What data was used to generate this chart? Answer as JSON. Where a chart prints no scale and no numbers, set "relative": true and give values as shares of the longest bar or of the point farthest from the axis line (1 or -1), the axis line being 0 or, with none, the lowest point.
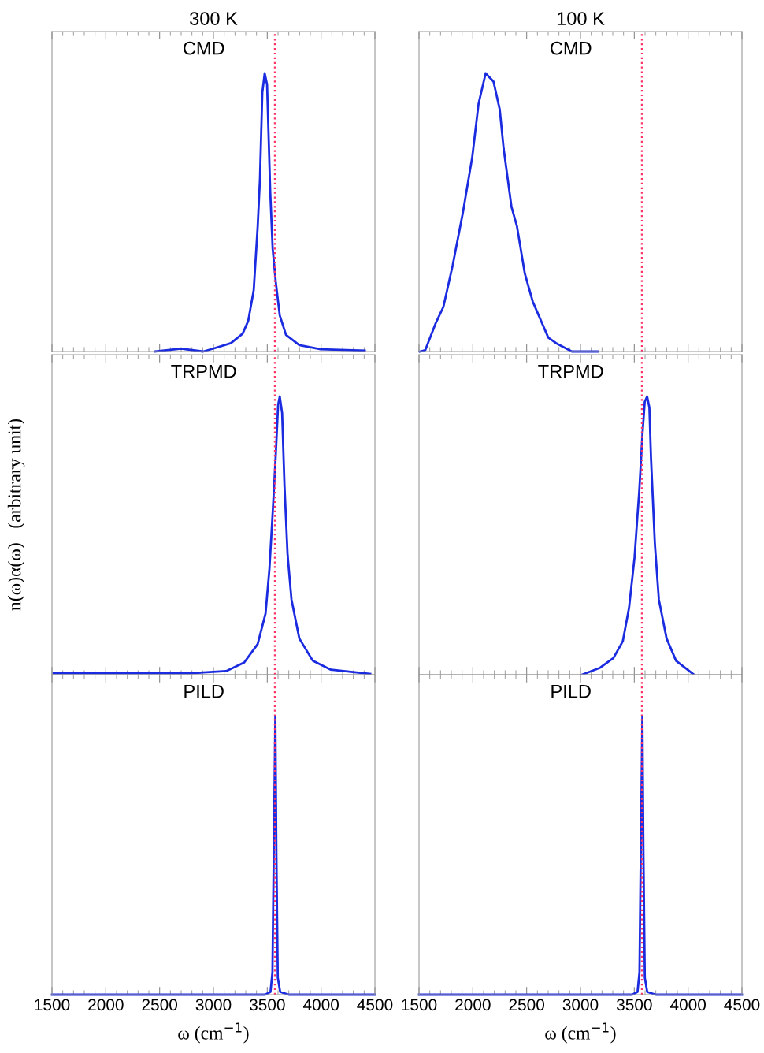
{
  "chart_data": [
    {
      "type": "line",
      "title": "300 K",
      "annotations": [
        "CMD"
      ],
      "relative": true,
      "xlim": [
        1500,
        4500
      ],
      "xticks": [
        1500,
        2000,
        2500,
        3000,
        3500,
        4000,
        4500
      ],
      "tick_labels": false,
      "ref_lines": [
        {
          "axis": "x",
          "value": 3570,
          "color": "#ff3366",
          "line_style": "dotted"
        }
      ],
      "series": [
        {
          "color": "#1a2be0",
          "x": [
            2459,
            2700,
            2905,
            2993,
            3162,
            3271,
            3323,
            3374,
            3411,
            3432,
            3454,
            3476,
            3498,
            3528,
            3550,
            3579,
            3616,
            3674,
            3798,
            3996,
            4406
          ],
          "values": [
            0,
            0.01,
            0,
            0.01,
            0.03,
            0.064,
            0.11,
            0.22,
            0.45,
            0.62,
            0.93,
            1.0,
            0.96,
            0.57,
            0.37,
            0.25,
            0.13,
            0.06,
            0.023,
            0.008,
            0.003
          ]
        }
      ]
    },
    {
      "type": "line",
      "title": "100 K",
      "annotations": [
        "CMD"
      ],
      "relative": true,
      "xlim": [
        1500,
        4500
      ],
      "xticks": [
        1500,
        2000,
        2500,
        3000,
        3500,
        4000,
        4500
      ],
      "tick_labels": false,
      "ref_lines": [
        {
          "axis": "x",
          "value": 3570,
          "color": "#ff3366",
          "line_style": "dotted"
        }
      ],
      "series": [
        {
          "color": "#1a2be0",
          "x": [
            1507,
            1558,
            1653,
            1726,
            1813,
            1908,
            1995,
            2053,
            2119,
            2192,
            2250,
            2286,
            2359,
            2410,
            2483,
            2556,
            2701,
            2774,
            2920,
            3160
          ],
          "values": [
            0,
            0.005,
            0.1,
            0.16,
            0.31,
            0.5,
            0.7,
            0.89,
            1.0,
            0.97,
            0.87,
            0.73,
            0.52,
            0.45,
            0.28,
            0.18,
            0.05,
            0.03,
            0,
            0
          ]
        }
      ]
    },
    {
      "type": "line",
      "annotations": [
        "TRPMD"
      ],
      "ylabel": "n(ω)α(ω)   (arbitrary unit)",
      "relative": true,
      "xlim": [
        1500,
        4500
      ],
      "xticks": [
        1500,
        2000,
        2500,
        3000,
        3500,
        4000,
        4500
      ],
      "tick_labels": false,
      "ref_lines": [
        {
          "axis": "x",
          "value": 3570,
          "color": "#ff3366",
          "line_style": "dotted"
        }
      ],
      "series": [
        {
          "color": "#1a2be0",
          "x": [
            1515,
            2115,
            2774,
            3118,
            3286,
            3411,
            3484,
            3520,
            3550,
            3579,
            3601,
            3616,
            3638,
            3660,
            3689,
            3725,
            3798,
            3923,
            4091,
            4457
          ],
          "values": [
            0.005,
            0.005,
            0.005,
            0.013,
            0.044,
            0.11,
            0.22,
            0.38,
            0.58,
            0.79,
            0.97,
            1.0,
            0.94,
            0.68,
            0.43,
            0.27,
            0.13,
            0.05,
            0.018,
            0.003
          ]
        }
      ]
    },
    {
      "type": "line",
      "annotations": [
        "TRPMD"
      ],
      "relative": true,
      "xlim": [
        1500,
        4500
      ],
      "xticks": [
        1500,
        2000,
        2500,
        3000,
        3500,
        4000,
        4500
      ],
      "tick_labels": false,
      "ref_lines": [
        {
          "axis": "x",
          "value": 3570,
          "color": "#ff3366",
          "line_style": "dotted"
        }
      ],
      "series": [
        {
          "color": "#1a2be0",
          "x": [
            3014,
            3182,
            3306,
            3393,
            3451,
            3502,
            3531,
            3546,
            3575,
            3597,
            3619,
            3640,
            3655,
            3691,
            3728,
            3800,
            3888,
            4055
          ],
          "values": [
            0,
            0.025,
            0.06,
            0.12,
            0.24,
            0.42,
            0.58,
            0.66,
            0.86,
            0.98,
            1.0,
            0.96,
            0.78,
            0.47,
            0.27,
            0.13,
            0.05,
            0
          ]
        }
      ]
    },
    {
      "type": "line",
      "annotations": [
        "PILD"
      ],
      "xlabel": "ω (cm$^{−1}$)",
      "relative": true,
      "xlim": [
        1500,
        4500
      ],
      "xticks": [
        1500,
        2000,
        2500,
        3000,
        3500,
        4000,
        4500
      ],
      "tick_labels": "x",
      "ref_lines": [
        {
          "axis": "x",
          "value": 3570,
          "color": "#ff3366",
          "line_style": "dotted"
        }
      ],
      "series": [
        {
          "color": "#1a2be0",
          "x": [
            1500,
            3480,
            3530,
            3548,
            3560,
            3575,
            3585,
            3598,
            3620,
            3700,
            4500
          ],
          "values": [
            0,
            0,
            0.01,
            0.08,
            0.5,
            1.0,
            0.5,
            0.06,
            0.01,
            0,
            0
          ]
        }
      ]
    },
    {
      "type": "line",
      "annotations": [
        "PILD"
      ],
      "xlabel": "ω (cm$^{−1}$)",
      "relative": true,
      "xlim": [
        1500,
        4500
      ],
      "xticks": [
        1500,
        2000,
        2500,
        3000,
        3500,
        4000,
        4500
      ],
      "tick_labels": "x",
      "ref_lines": [
        {
          "axis": "x",
          "value": 3570,
          "color": "#ff3366",
          "line_style": "dotted"
        }
      ],
      "series": [
        {
          "color": "#1a2be0",
          "x": [
            1500,
            3480,
            3530,
            3548,
            3560,
            3575,
            3585,
            3598,
            3620,
            3700,
            4500
          ],
          "values": [
            0,
            0,
            0.01,
            0.08,
            0.5,
            1.0,
            0.5,
            0.06,
            0.01,
            0,
            0
          ]
        }
      ]
    }
  ]
}
